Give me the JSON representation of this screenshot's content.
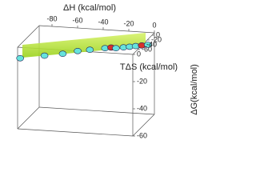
{
  "chart_data": {
    "type": "scatter3d",
    "x_label": "ΔH (kcal/mol)",
    "y_label": "TΔS (kcal/mol)",
    "z_label": "ΔG(kcal/mol)",
    "x": [
      -88,
      -72,
      -60,
      -50,
      -42,
      -32,
      -28,
      -25,
      -20,
      -16,
      -12,
      -8,
      -4
    ],
    "y": [
      -80,
      -64,
      -52,
      -43,
      -35,
      -25,
      -21,
      -17,
      -12,
      -8,
      -4,
      0,
      4
    ],
    "z": [
      -8,
      -8,
      -8,
      -7,
      -7,
      -7,
      -7,
      -8,
      -8,
      -8,
      -8,
      -8,
      -8
    ],
    "colors": [
      "#66e3dc",
      "#66e3dc",
      "#66e3dc",
      "#66e3dc",
      "#66e3dc",
      "#66e3dc",
      "#d8312b",
      "#66e3dc",
      "#66e3dc",
      "#66e3dc",
      "#66e3dc",
      "#d8312b",
      "#66e3dc"
    ],
    "xlim": [
      -90,
      0
    ],
    "ylim": [
      -80,
      10
    ],
    "zlim": [
      -60,
      0
    ],
    "xticks": [
      -80,
      -60,
      -40,
      -20,
      0
    ],
    "yticks": [
      -60,
      -40,
      -20,
      0
    ],
    "zticks": [
      -60,
      -40,
      -20,
      0
    ]
  }
}
